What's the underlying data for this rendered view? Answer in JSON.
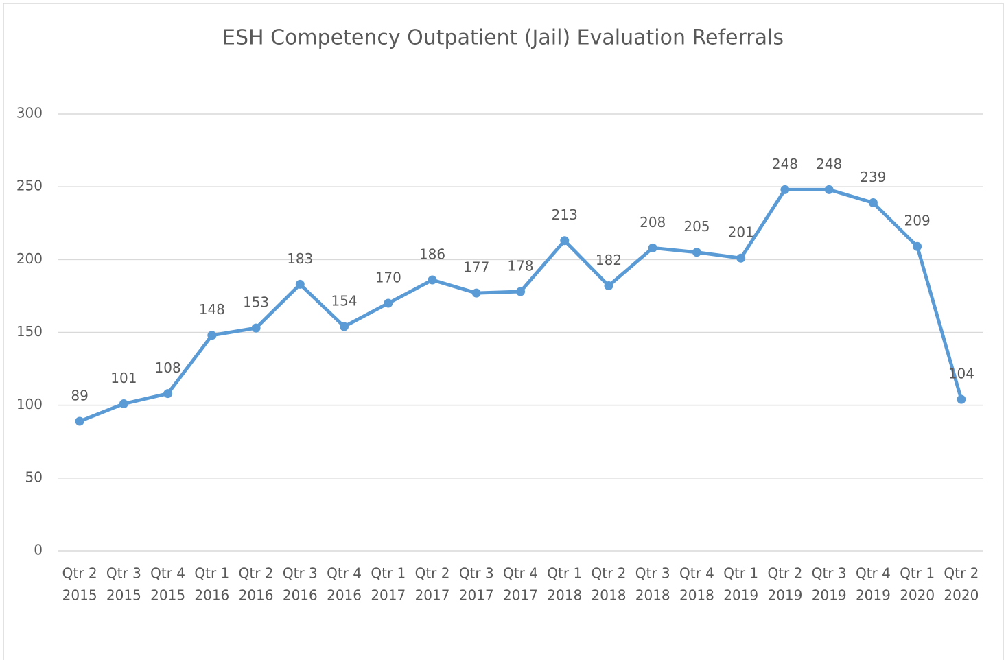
{
  "chart_data": {
    "type": "line",
    "title": "ESH Competency Outpatient (Jail) Evaluation Referrals",
    "categories": [
      [
        "Qtr 2",
        "2015"
      ],
      [
        "Qtr 3",
        "2015"
      ],
      [
        "Qtr 4",
        "2015"
      ],
      [
        "Qtr 1",
        "2016"
      ],
      [
        "Qtr 2",
        "2016"
      ],
      [
        "Qtr 3",
        "2016"
      ],
      [
        "Qtr 4",
        "2016"
      ],
      [
        "Qtr 1",
        "2017"
      ],
      [
        "Qtr 2",
        "2017"
      ],
      [
        "Qtr 3",
        "2017"
      ],
      [
        "Qtr 4",
        "2017"
      ],
      [
        "Qtr 1",
        "2018"
      ],
      [
        "Qtr 2",
        "2018"
      ],
      [
        "Qtr 3",
        "2018"
      ],
      [
        "Qtr 4",
        "2018"
      ],
      [
        "Qtr 1",
        "2019"
      ],
      [
        "Qtr 2",
        "2019"
      ],
      [
        "Qtr 3",
        "2019"
      ],
      [
        "Qtr 4",
        "2019"
      ],
      [
        "Qtr 1",
        "2020"
      ],
      [
        "Qtr 2",
        "2020"
      ]
    ],
    "values": [
      89,
      101,
      108,
      148,
      153,
      183,
      154,
      170,
      186,
      177,
      178,
      213,
      182,
      208,
      205,
      201,
      248,
      248,
      239,
      209,
      104
    ],
    "color": "#5b9bd5",
    "ylim": [
      0,
      300
    ],
    "yticks": [
      0,
      50,
      100,
      150,
      200,
      250,
      300
    ],
    "grid": true
  }
}
